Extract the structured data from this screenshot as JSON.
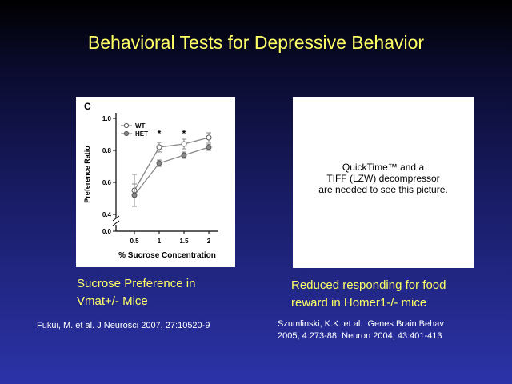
{
  "slide": {
    "title": "Behavioral Tests for Depressive Behavior"
  },
  "left_figure": {
    "panel_letter": "C",
    "caption_lines": [
      "Sucrose Preference in",
      "Vmat+/- Mice"
    ],
    "citation": "Fukui, M. et al. J Neurosci 2007, 27:10520-9"
  },
  "right_figure": {
    "placeholder_lines": [
      "QuickTime™ and a",
      "TIFF (LZW) decompressor",
      "are needed to see this picture."
    ],
    "caption_lines": [
      "Reduced responding for food",
      "reward in Homer1-/- mice"
    ],
    "citation_lines": [
      "Szumlinski, K.K. et al.  Genes Brain Behav",
      "2005, 4:273-88. Neuron 2004, 43:401-413"
    ]
  },
  "chart_data": {
    "type": "line",
    "categories": [
      "0.5",
      "1",
      "1.5",
      "2"
    ],
    "xlabel": "% Sucrose Concentration",
    "ylabel": "Preference Ratio",
    "ylim": [
      0.0,
      1.0
    ],
    "yticks": [
      "0.0",
      "0.4",
      "0.6",
      "0.8",
      "1.0"
    ],
    "y_axis_break": true,
    "significance_markers": [
      "",
      "*",
      "*",
      ""
    ],
    "legend_position": "top-left",
    "series": [
      {
        "name": "WT",
        "marker": "open-circle",
        "values": [
          0.55,
          0.82,
          0.84,
          0.88
        ],
        "errors": [
          0.1,
          0.03,
          0.03,
          0.03
        ]
      },
      {
        "name": "HET",
        "marker": "filled-circle",
        "values": [
          0.52,
          0.72,
          0.77,
          0.82
        ],
        "errors": [
          0.07,
          0.02,
          0.02,
          0.02
        ]
      }
    ],
    "colors": {
      "WT": "#ffffff",
      "HET": "#888888",
      "line": "#888888"
    }
  }
}
